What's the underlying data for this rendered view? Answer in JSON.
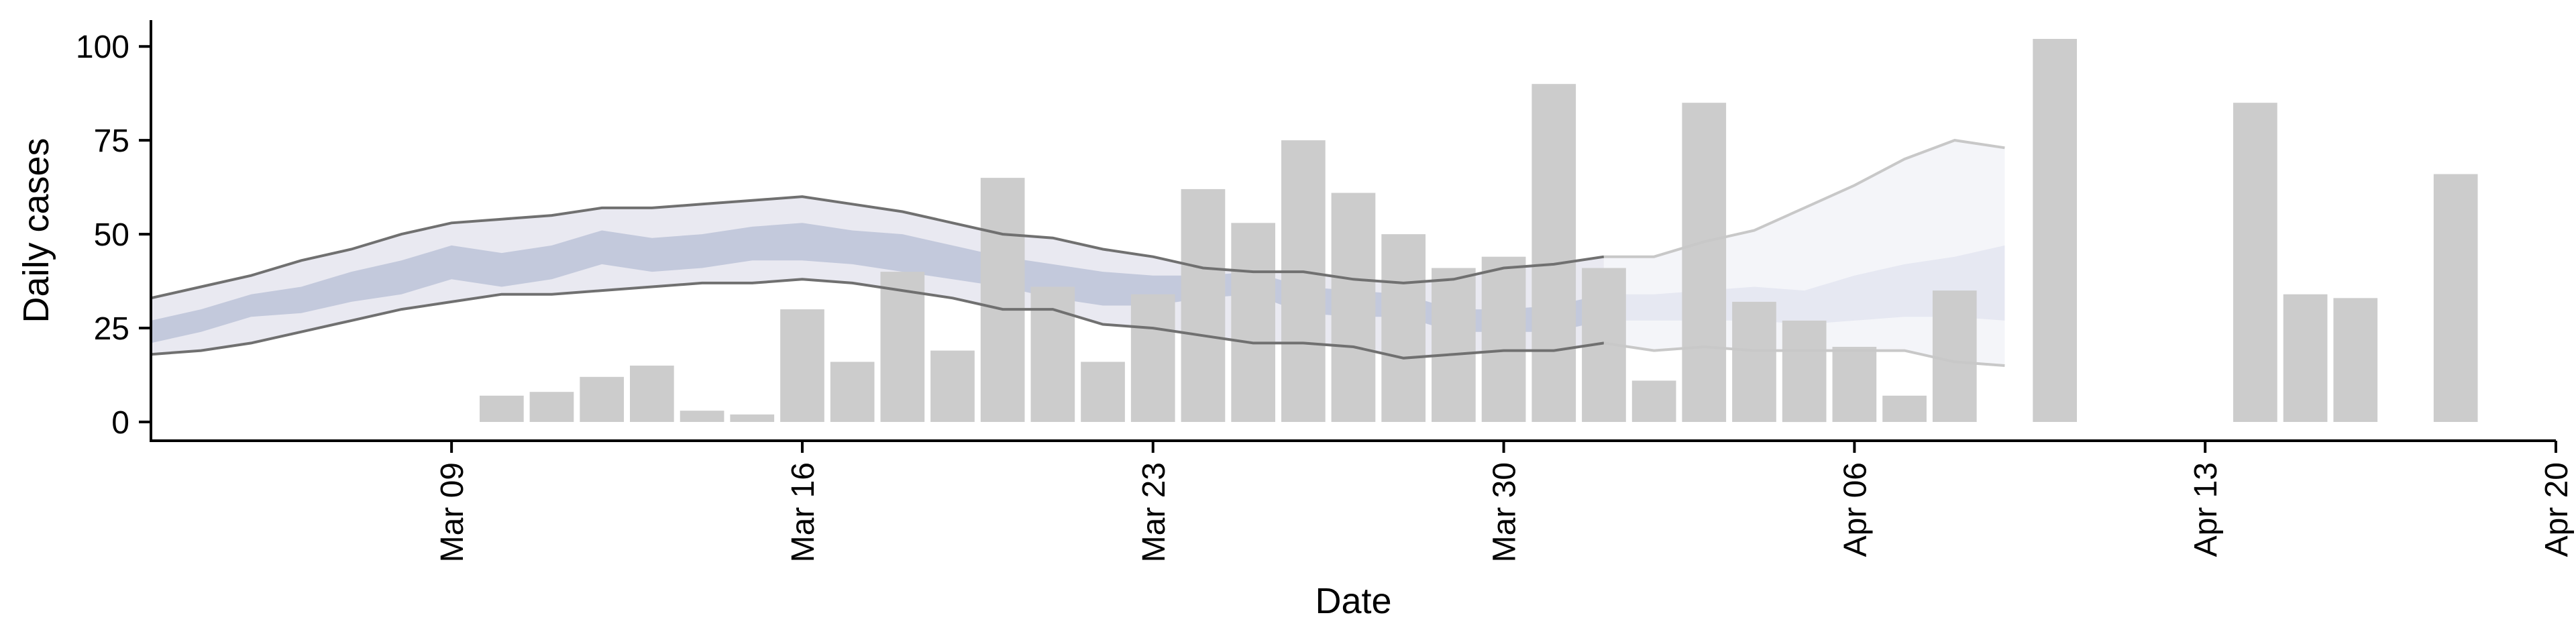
{
  "chart_data": {
    "type": "bar",
    "xlabel": "Date",
    "ylabel": "Daily cases",
    "xlim": [
      "2020-03-03",
      "2020-04-20"
    ],
    "ylim": [
      -5,
      107
    ],
    "x_ticks": [
      "2020-03-09",
      "2020-03-16",
      "2020-03-23",
      "2020-03-30",
      "2020-04-06",
      "2020-04-13",
      "2020-04-20"
    ],
    "x_tick_labels": [
      "Mar 09",
      "Mar 16",
      "Mar 23",
      "Mar 30",
      "Apr 06",
      "Apr 13",
      "Apr 20"
    ],
    "y_ticks": [
      0,
      25,
      50,
      75,
      100
    ],
    "grid": false,
    "legend": "none",
    "colors": {
      "bars": "#cccccc",
      "outer_band": "#e9e9f1",
      "inner_band": "#c3c9dc",
      "outer_band_forecast": "#f4f5f9",
      "inner_band_forecast": "#e6e8f2",
      "bound_line": "#707070",
      "bound_line_forecast": "#c8c8c8"
    },
    "bars": [
      {
        "date": "2020-03-10",
        "value": 7
      },
      {
        "date": "2020-03-11",
        "value": 8
      },
      {
        "date": "2020-03-12",
        "value": 12
      },
      {
        "date": "2020-03-13",
        "value": 15
      },
      {
        "date": "2020-03-14",
        "value": 3
      },
      {
        "date": "2020-03-15",
        "value": 2
      },
      {
        "date": "2020-03-16",
        "value": 30
      },
      {
        "date": "2020-03-17",
        "value": 16
      },
      {
        "date": "2020-03-18",
        "value": 40
      },
      {
        "date": "2020-03-19",
        "value": 19
      },
      {
        "date": "2020-03-20",
        "value": 65
      },
      {
        "date": "2020-03-21",
        "value": 36
      },
      {
        "date": "2020-03-22",
        "value": 16
      },
      {
        "date": "2020-03-23",
        "value": 34
      },
      {
        "date": "2020-03-24",
        "value": 62
      },
      {
        "date": "2020-03-25",
        "value": 53
      },
      {
        "date": "2020-03-26",
        "value": 75
      },
      {
        "date": "2020-03-27",
        "value": 61
      },
      {
        "date": "2020-03-28",
        "value": 50
      },
      {
        "date": "2020-03-29",
        "value": 41
      },
      {
        "date": "2020-03-30",
        "value": 44
      },
      {
        "date": "2020-03-31",
        "value": 90
      },
      {
        "date": "2020-04-01",
        "value": 41
      },
      {
        "date": "2020-04-02",
        "value": 11
      },
      {
        "date": "2020-04-03",
        "value": 85
      },
      {
        "date": "2020-04-04",
        "value": 32
      },
      {
        "date": "2020-04-05",
        "value": 27
      },
      {
        "date": "2020-04-06",
        "value": 20
      },
      {
        "date": "2020-04-07",
        "value": 7
      },
      {
        "date": "2020-04-08",
        "value": 35
      },
      {
        "date": "2020-04-10",
        "value": 102
      },
      {
        "date": "2020-04-14",
        "value": 85
      },
      {
        "date": "2020-04-15",
        "value": 34
      },
      {
        "date": "2020-04-16",
        "value": 33
      },
      {
        "date": "2020-04-18",
        "value": 66
      }
    ],
    "band_dates": [
      "2020-03-03",
      "2020-03-04",
      "2020-03-05",
      "2020-03-06",
      "2020-03-07",
      "2020-03-08",
      "2020-03-09",
      "2020-03-10",
      "2020-03-11",
      "2020-03-12",
      "2020-03-13",
      "2020-03-14",
      "2020-03-15",
      "2020-03-16",
      "2020-03-17",
      "2020-03-18",
      "2020-03-19",
      "2020-03-20",
      "2020-03-21",
      "2020-03-22",
      "2020-03-23",
      "2020-03-24",
      "2020-03-25",
      "2020-03-26",
      "2020-03-27",
      "2020-03-28",
      "2020-03-29",
      "2020-03-30",
      "2020-03-31",
      "2020-04-01",
      "2020-04-02",
      "2020-04-03",
      "2020-04-04",
      "2020-04-05",
      "2020-04-06",
      "2020-04-07",
      "2020-04-08",
      "2020-04-09"
    ],
    "forecast_start": "2020-04-01",
    "outer_upper": [
      33,
      36,
      39,
      43,
      46,
      50,
      53,
      54,
      55,
      57,
      57,
      58,
      59,
      60,
      58,
      56,
      53,
      50,
      49,
      46,
      44,
      41,
      40,
      40,
      38,
      37,
      38,
      41,
      42,
      44,
      44,
      48,
      51,
      57,
      63,
      70,
      75,
      73
    ],
    "inner_upper": [
      27,
      30,
      34,
      36,
      40,
      43,
      47,
      45,
      47,
      51,
      49,
      50,
      52,
      53,
      51,
      50,
      47,
      44,
      42,
      40,
      39,
      39,
      40,
      36,
      35,
      34,
      30,
      30,
      31,
      34,
      34,
      35,
      36,
      35,
      39,
      42,
      44,
      47
    ],
    "inner_lower": [
      21,
      24,
      28,
      29,
      32,
      34,
      38,
      36,
      38,
      42,
      40,
      41,
      43,
      43,
      42,
      40,
      38,
      36,
      33,
      31,
      31,
      33,
      34,
      29,
      28,
      28,
      24,
      24,
      24,
      27,
      27,
      27,
      27,
      26,
      27,
      28,
      28,
      27
    ],
    "outer_lower": [
      18,
      19,
      21,
      24,
      27,
      30,
      32,
      34,
      34,
      35,
      36,
      37,
      37,
      38,
      37,
      35,
      33,
      30,
      30,
      26,
      25,
      23,
      21,
      21,
      20,
      17,
      18,
      19,
      19,
      21,
      19,
      20,
      19,
      19,
      19,
      19,
      16,
      15
    ]
  }
}
